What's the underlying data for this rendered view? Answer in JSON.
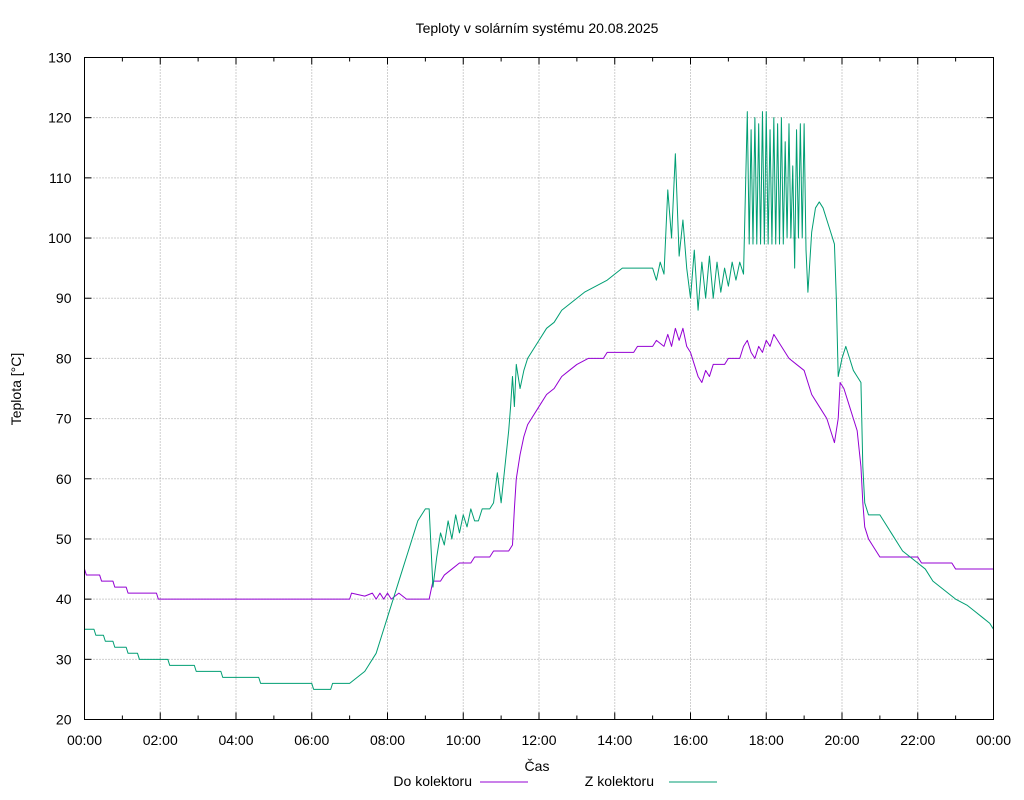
{
  "chart_data": {
    "type": "line",
    "title": "Teploty v solárním systému 20.08.2025",
    "xlabel": "Čas",
    "ylabel": "Teplota [°C]",
    "xlim": [
      0,
      24
    ],
    "ylim": [
      20,
      130
    ],
    "x_ticks": [
      {
        "v": 0,
        "label": "00:00"
      },
      {
        "v": 2,
        "label": "02:00"
      },
      {
        "v": 4,
        "label": "04:00"
      },
      {
        "v": 6,
        "label": "06:00"
      },
      {
        "v": 8,
        "label": "08:00"
      },
      {
        "v": 10,
        "label": "10:00"
      },
      {
        "v": 12,
        "label": "12:00"
      },
      {
        "v": 14,
        "label": "14:00"
      },
      {
        "v": 16,
        "label": "16:00"
      },
      {
        "v": 18,
        "label": "18:00"
      },
      {
        "v": 20,
        "label": "20:00"
      },
      {
        "v": 22,
        "label": "22:00"
      },
      {
        "v": 24,
        "label": "00:00"
      }
    ],
    "y_ticks": [
      {
        "v": 20,
        "label": "20"
      },
      {
        "v": 30,
        "label": "30"
      },
      {
        "v": 40,
        "label": "40"
      },
      {
        "v": 50,
        "label": "50"
      },
      {
        "v": 60,
        "label": "60"
      },
      {
        "v": 70,
        "label": "70"
      },
      {
        "v": 80,
        "label": "80"
      },
      {
        "v": 90,
        "label": "90"
      },
      {
        "v": 100,
        "label": "100"
      },
      {
        "v": 110,
        "label": "110"
      },
      {
        "v": 120,
        "label": "120"
      },
      {
        "v": 130,
        "label": "130"
      }
    ],
    "grid": true,
    "legend_position": "bottom",
    "series": [
      {
        "name": "Do kolektoru",
        "color": "#9400d3",
        "points": [
          [
            0,
            45
          ],
          [
            0.05,
            44
          ],
          [
            0.4,
            44
          ],
          [
            0.45,
            43
          ],
          [
            0.75,
            43
          ],
          [
            0.8,
            42
          ],
          [
            1.1,
            42
          ],
          [
            1.15,
            41
          ],
          [
            1.9,
            41
          ],
          [
            1.95,
            40
          ],
          [
            7.0,
            40
          ],
          [
            7.05,
            41
          ],
          [
            7.4,
            40.5
          ],
          [
            7.6,
            41
          ],
          [
            7.7,
            40
          ],
          [
            7.8,
            41
          ],
          [
            7.9,
            40
          ],
          [
            8.0,
            41
          ],
          [
            8.1,
            40
          ],
          [
            8.3,
            41
          ],
          [
            8.5,
            40
          ],
          [
            9.1,
            40
          ],
          [
            9.2,
            43
          ],
          [
            9.4,
            43
          ],
          [
            9.5,
            44
          ],
          [
            9.7,
            45
          ],
          [
            9.9,
            46
          ],
          [
            10.2,
            46
          ],
          [
            10.3,
            47
          ],
          [
            10.7,
            47
          ],
          [
            10.8,
            48
          ],
          [
            11.2,
            48
          ],
          [
            11.3,
            49
          ],
          [
            11.35,
            55
          ],
          [
            11.4,
            60
          ],
          [
            11.5,
            64
          ],
          [
            11.6,
            67
          ],
          [
            11.7,
            69
          ],
          [
            11.8,
            70
          ],
          [
            12.0,
            72
          ],
          [
            12.2,
            74
          ],
          [
            12.4,
            75
          ],
          [
            12.6,
            77
          ],
          [
            12.8,
            78
          ],
          [
            13.0,
            79
          ],
          [
            13.3,
            80
          ],
          [
            13.7,
            80
          ],
          [
            13.8,
            81
          ],
          [
            14.5,
            81
          ],
          [
            14.6,
            82
          ],
          [
            15.0,
            82
          ],
          [
            15.1,
            83
          ],
          [
            15.3,
            82
          ],
          [
            15.4,
            84
          ],
          [
            15.5,
            82
          ],
          [
            15.6,
            85
          ],
          [
            15.7,
            83
          ],
          [
            15.8,
            85
          ],
          [
            15.9,
            82
          ],
          [
            16.0,
            81
          ],
          [
            16.1,
            79
          ],
          [
            16.2,
            77
          ],
          [
            16.3,
            76
          ],
          [
            16.4,
            78
          ],
          [
            16.5,
            77
          ],
          [
            16.6,
            79
          ],
          [
            16.9,
            79
          ],
          [
            17.0,
            80
          ],
          [
            17.3,
            80
          ],
          [
            17.4,
            82
          ],
          [
            17.5,
            83
          ],
          [
            17.6,
            81
          ],
          [
            17.7,
            80
          ],
          [
            17.8,
            82
          ],
          [
            17.9,
            81
          ],
          [
            18.0,
            83
          ],
          [
            18.1,
            82
          ],
          [
            18.2,
            84
          ],
          [
            18.3,
            83
          ],
          [
            18.4,
            82
          ],
          [
            18.5,
            81
          ],
          [
            18.6,
            80
          ],
          [
            18.8,
            79
          ],
          [
            19.0,
            78
          ],
          [
            19.1,
            76
          ],
          [
            19.2,
            74
          ],
          [
            19.4,
            72
          ],
          [
            19.6,
            70
          ],
          [
            19.7,
            68
          ],
          [
            19.8,
            66
          ],
          [
            19.9,
            70
          ],
          [
            19.95,
            76
          ],
          [
            20.05,
            75
          ],
          [
            20.2,
            72
          ],
          [
            20.3,
            70
          ],
          [
            20.4,
            68
          ],
          [
            20.5,
            62
          ],
          [
            20.55,
            56
          ],
          [
            20.6,
            52
          ],
          [
            20.7,
            50
          ],
          [
            20.8,
            49
          ],
          [
            20.9,
            48
          ],
          [
            21.0,
            47
          ],
          [
            21.5,
            47
          ],
          [
            22.0,
            47
          ],
          [
            22.1,
            46
          ],
          [
            22.5,
            46
          ],
          [
            22.9,
            46
          ],
          [
            23.0,
            45
          ],
          [
            24.0,
            45
          ]
        ]
      },
      {
        "name": "Z kolektoru",
        "color": "#009e73",
        "points": [
          [
            0,
            35
          ],
          [
            0.25,
            35
          ],
          [
            0.3,
            34
          ],
          [
            0.5,
            34
          ],
          [
            0.55,
            33
          ],
          [
            0.75,
            33
          ],
          [
            0.8,
            32
          ],
          [
            1.1,
            32
          ],
          [
            1.15,
            31
          ],
          [
            1.4,
            31
          ],
          [
            1.45,
            30
          ],
          [
            2.2,
            30
          ],
          [
            2.25,
            29
          ],
          [
            2.9,
            29
          ],
          [
            2.95,
            28
          ],
          [
            3.6,
            28
          ],
          [
            3.65,
            27
          ],
          [
            4.6,
            27
          ],
          [
            4.65,
            26
          ],
          [
            6.0,
            26
          ],
          [
            6.05,
            25
          ],
          [
            6.5,
            25
          ],
          [
            6.55,
            26
          ],
          [
            7.0,
            26
          ],
          [
            7.2,
            27
          ],
          [
            7.4,
            28
          ],
          [
            7.5,
            29
          ],
          [
            7.6,
            30
          ],
          [
            7.7,
            31
          ],
          [
            7.8,
            33
          ],
          [
            7.9,
            35
          ],
          [
            8.0,
            37
          ],
          [
            8.1,
            39
          ],
          [
            8.2,
            41
          ],
          [
            8.3,
            43
          ],
          [
            8.4,
            45
          ],
          [
            8.5,
            47
          ],
          [
            8.6,
            49
          ],
          [
            8.7,
            51
          ],
          [
            8.8,
            53
          ],
          [
            8.9,
            54
          ],
          [
            9.0,
            55
          ],
          [
            9.1,
            55
          ],
          [
            9.2,
            42
          ],
          [
            9.3,
            47
          ],
          [
            9.4,
            51
          ],
          [
            9.5,
            49
          ],
          [
            9.6,
            53
          ],
          [
            9.7,
            50
          ],
          [
            9.8,
            54
          ],
          [
            9.9,
            51
          ],
          [
            10.0,
            54
          ],
          [
            10.1,
            52
          ],
          [
            10.2,
            55
          ],
          [
            10.3,
            53
          ],
          [
            10.4,
            53
          ],
          [
            10.5,
            55
          ],
          [
            10.6,
            55
          ],
          [
            10.7,
            55
          ],
          [
            10.8,
            56
          ],
          [
            10.9,
            61
          ],
          [
            11.0,
            56
          ],
          [
            11.1,
            62
          ],
          [
            11.2,
            68
          ],
          [
            11.25,
            72
          ],
          [
            11.3,
            77
          ],
          [
            11.35,
            72
          ],
          [
            11.4,
            79
          ],
          [
            11.5,
            75
          ],
          [
            11.6,
            78
          ],
          [
            11.7,
            80
          ],
          [
            11.8,
            81
          ],
          [
            12.0,
            83
          ],
          [
            12.2,
            85
          ],
          [
            12.4,
            86
          ],
          [
            12.6,
            88
          ],
          [
            12.8,
            89
          ],
          [
            13.0,
            90
          ],
          [
            13.2,
            91
          ],
          [
            13.5,
            92
          ],
          [
            13.8,
            93
          ],
          [
            14.0,
            94
          ],
          [
            14.2,
            95
          ],
          [
            14.5,
            95
          ],
          [
            14.8,
            95
          ],
          [
            15.0,
            95
          ],
          [
            15.1,
            93
          ],
          [
            15.2,
            96
          ],
          [
            15.3,
            94
          ],
          [
            15.4,
            108
          ],
          [
            15.5,
            100
          ],
          [
            15.6,
            114
          ],
          [
            15.7,
            97
          ],
          [
            15.8,
            103
          ],
          [
            15.9,
            95
          ],
          [
            16.0,
            90
          ],
          [
            16.1,
            98
          ],
          [
            16.2,
            88
          ],
          [
            16.3,
            96
          ],
          [
            16.4,
            90
          ],
          [
            16.5,
            97
          ],
          [
            16.6,
            90
          ],
          [
            16.7,
            96
          ],
          [
            16.8,
            91
          ],
          [
            16.9,
            95
          ],
          [
            17.0,
            92
          ],
          [
            17.1,
            96
          ],
          [
            17.2,
            93
          ],
          [
            17.3,
            96
          ],
          [
            17.4,
            94
          ],
          [
            17.5,
            121
          ],
          [
            17.55,
            99
          ],
          [
            17.6,
            118
          ],
          [
            17.65,
            99
          ],
          [
            17.7,
            120
          ],
          [
            17.75,
            99
          ],
          [
            17.8,
            119
          ],
          [
            17.85,
            99
          ],
          [
            17.9,
            121
          ],
          [
            17.95,
            99
          ],
          [
            18.0,
            121
          ],
          [
            18.05,
            99
          ],
          [
            18.1,
            118
          ],
          [
            18.15,
            99
          ],
          [
            18.2,
            120
          ],
          [
            18.25,
            99
          ],
          [
            18.3,
            119
          ],
          [
            18.35,
            99
          ],
          [
            18.4,
            120
          ],
          [
            18.45,
            99
          ],
          [
            18.5,
            116
          ],
          [
            18.55,
            100
          ],
          [
            18.6,
            119
          ],
          [
            18.65,
            100
          ],
          [
            18.7,
            112
          ],
          [
            18.75,
            95
          ],
          [
            18.8,
            118
          ],
          [
            18.85,
            100
          ],
          [
            18.9,
            119
          ],
          [
            18.95,
            100
          ],
          [
            19.0,
            119
          ],
          [
            19.05,
            98
          ],
          [
            19.1,
            91
          ],
          [
            19.2,
            101
          ],
          [
            19.3,
            105
          ],
          [
            19.4,
            106
          ],
          [
            19.5,
            105
          ],
          [
            19.6,
            103
          ],
          [
            19.7,
            101
          ],
          [
            19.8,
            99
          ],
          [
            19.85,
            90
          ],
          [
            19.9,
            77
          ],
          [
            20.0,
            80
          ],
          [
            20.1,
            82
          ],
          [
            20.2,
            80
          ],
          [
            20.3,
            78
          ],
          [
            20.4,
            77
          ],
          [
            20.5,
            76
          ],
          [
            20.55,
            62
          ],
          [
            20.6,
            56
          ],
          [
            20.7,
            54
          ],
          [
            21.0,
            54
          ],
          [
            21.1,
            53
          ],
          [
            21.3,
            51
          ],
          [
            21.5,
            49
          ],
          [
            21.6,
            48
          ],
          [
            21.8,
            47
          ],
          [
            22.0,
            46
          ],
          [
            22.2,
            45
          ],
          [
            22.4,
            43
          ],
          [
            22.6,
            42
          ],
          [
            22.8,
            41
          ],
          [
            23.0,
            40
          ],
          [
            23.3,
            39
          ],
          [
            23.5,
            38
          ],
          [
            23.7,
            37
          ],
          [
            23.9,
            36
          ],
          [
            24.0,
            35
          ]
        ]
      }
    ]
  }
}
